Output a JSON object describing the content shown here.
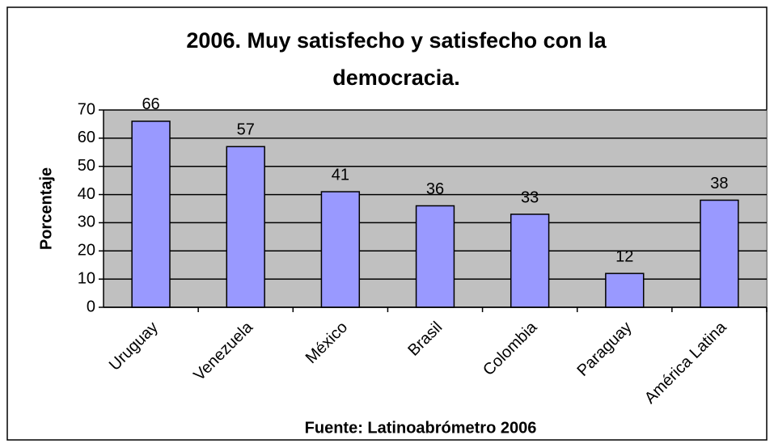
{
  "chart_data": {
    "type": "bar",
    "title": [
      "2006. Muy satisfecho y satisfecho con la",
      "democracia."
    ],
    "y_label": "Porcentaje",
    "source": "Fuente: Latinoabrómetro 2006",
    "categories": [
      "Uruguay",
      "Venezuela",
      "México",
      "Brasil",
      "Colombia",
      "Paraguay",
      "América Latina"
    ],
    "values": [
      66,
      57,
      41,
      36,
      33,
      12,
      38
    ],
    "color": "#9999ff",
    "ylim": [
      0,
      70
    ],
    "yticks": [
      0,
      10,
      20,
      30,
      40,
      50,
      60,
      70
    ],
    "grid": true
  }
}
